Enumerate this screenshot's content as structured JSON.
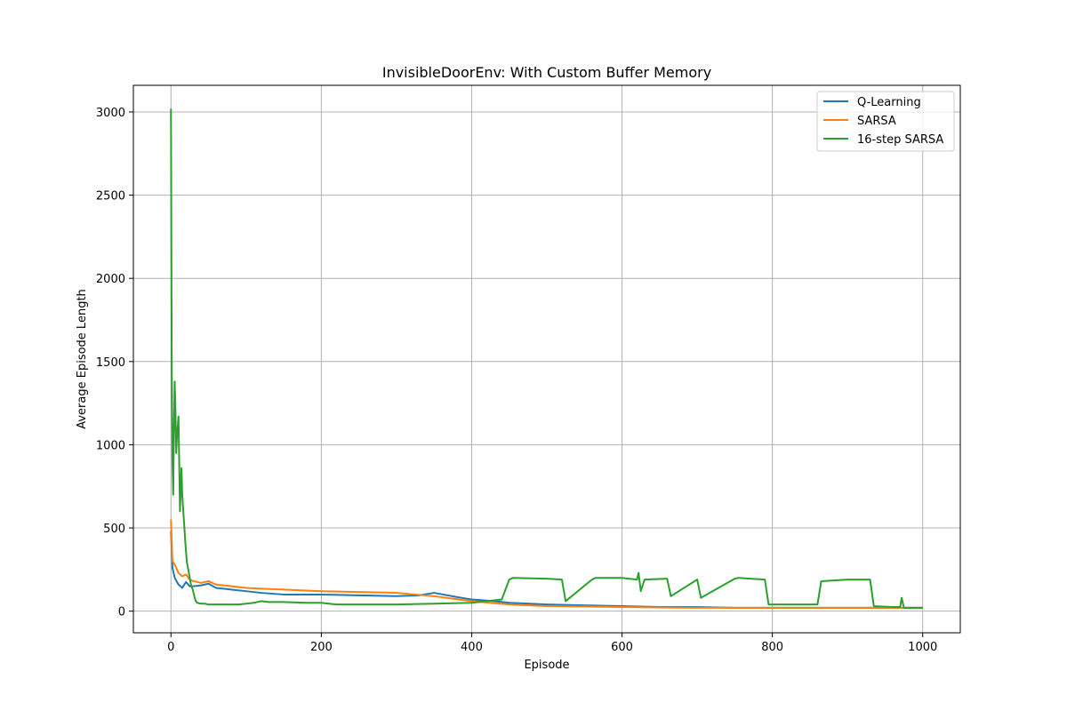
{
  "chart_data": {
    "type": "line",
    "title": "InvisibleDoorEnv: With Custom Buffer Memory",
    "xlabel": "Episode",
    "ylabel": "Average Episode Length",
    "xlim": [
      -50,
      1050
    ],
    "ylim": [
      -130,
      3160
    ],
    "xticks": [
      0,
      200,
      400,
      600,
      800,
      1000
    ],
    "yticks": [
      0,
      500,
      1000,
      1500,
      2000,
      2500,
      3000
    ],
    "grid": true,
    "legend_position": "top-right",
    "series": [
      {
        "name": "Q-Learning",
        "color": "#1f77b4",
        "x": [
          0,
          2,
          5,
          10,
          15,
          20,
          25,
          30,
          40,
          50,
          60,
          80,
          100,
          120,
          150,
          200,
          250,
          300,
          330,
          350,
          380,
          400,
          430,
          450,
          500,
          550,
          600,
          650,
          700,
          750,
          800,
          850,
          900,
          950,
          1000
        ],
        "y": [
          480,
          260,
          200,
          160,
          140,
          175,
          150,
          150,
          155,
          165,
          140,
          130,
          120,
          110,
          100,
          100,
          95,
          90,
          95,
          110,
          85,
          70,
          60,
          50,
          40,
          35,
          30,
          25,
          25,
          20,
          20,
          20,
          20,
          20,
          20
        ]
      },
      {
        "name": "SARSA",
        "color": "#ff7f0e",
        "x": [
          0,
          2,
          5,
          10,
          15,
          20,
          25,
          30,
          40,
          50,
          60,
          80,
          100,
          120,
          150,
          200,
          250,
          300,
          350,
          400,
          450,
          500,
          550,
          600,
          650,
          700,
          750,
          800,
          850,
          900,
          950,
          1000
        ],
        "y": [
          550,
          300,
          280,
          230,
          210,
          220,
          190,
          180,
          170,
          180,
          160,
          150,
          140,
          135,
          130,
          120,
          115,
          110,
          90,
          60,
          40,
          30,
          28,
          25,
          22,
          20,
          20,
          20,
          20,
          20,
          20,
          20
        ]
      },
      {
        "name": "16-step SARSA",
        "color": "#2ca02c",
        "x": [
          0,
          1,
          2,
          3,
          4,
          5,
          6,
          7,
          8,
          10,
          12,
          14,
          15,
          17,
          19,
          21,
          23,
          25,
          27,
          29,
          31,
          33,
          35,
          40,
          45,
          50,
          60,
          70,
          80,
          90,
          100,
          110,
          120,
          130,
          150,
          180,
          200,
          210,
          220,
          250,
          300,
          350,
          400,
          420,
          440,
          450,
          455,
          500,
          520,
          525,
          560,
          565,
          600,
          620,
          622,
          625,
          630,
          660,
          665,
          700,
          705,
          750,
          755,
          790,
          795,
          820,
          840,
          860,
          865,
          900,
          930,
          935,
          960,
          970,
          972,
          975,
          1000
        ],
        "y": [
          3020,
          1500,
          900,
          700,
          1100,
          1380,
          1200,
          950,
          1050,
          1170,
          600,
          860,
          700,
          560,
          420,
          300,
          250,
          200,
          150,
          130,
          90,
          60,
          50,
          45,
          45,
          40,
          40,
          40,
          40,
          40,
          45,
          50,
          60,
          55,
          55,
          50,
          50,
          45,
          40,
          40,
          40,
          45,
          50,
          60,
          70,
          190,
          200,
          195,
          190,
          60,
          190,
          200,
          200,
          190,
          230,
          120,
          190,
          195,
          90,
          190,
          80,
          195,
          200,
          190,
          40,
          40,
          40,
          40,
          180,
          190,
          190,
          30,
          25,
          25,
          80,
          20,
          20
        ]
      }
    ]
  }
}
